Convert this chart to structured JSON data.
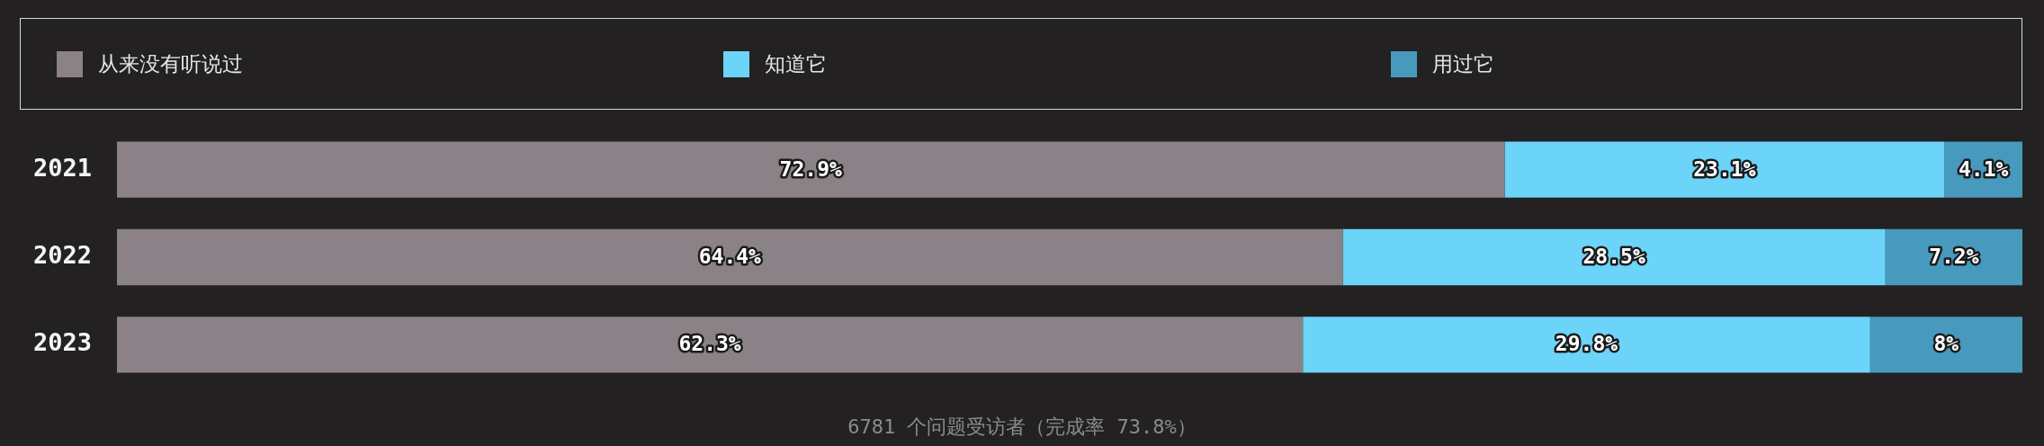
{
  "chart_data": {
    "type": "bar",
    "orientation": "horizontal",
    "stacked": true,
    "categories": [
      "2021",
      "2022",
      "2023"
    ],
    "series": [
      {
        "name": "从来没有听说过",
        "color": "#8a8286",
        "values": [
          72.9,
          64.4,
          62.3
        ],
        "value_labels": [
          "72.9%",
          "64.4%",
          "62.3%"
        ]
      },
      {
        "name": "知道它",
        "color": "#6cd3f9",
        "values": [
          23.1,
          28.5,
          29.8
        ],
        "value_labels": [
          "23.1%",
          "28.5%",
          "29.8%"
        ]
      },
      {
        "name": "用过它",
        "color": "#4799bd",
        "values": [
          4.1,
          7.2,
          8
        ],
        "value_labels": [
          "4.1%",
          "7.2%",
          "8%"
        ]
      }
    ],
    "xlim": [
      0,
      100.1
    ],
    "tick_labels": "y",
    "legend": "top",
    "annotations": [
      "6781 个问题受访者（完成率 73.8%）"
    ]
  }
}
